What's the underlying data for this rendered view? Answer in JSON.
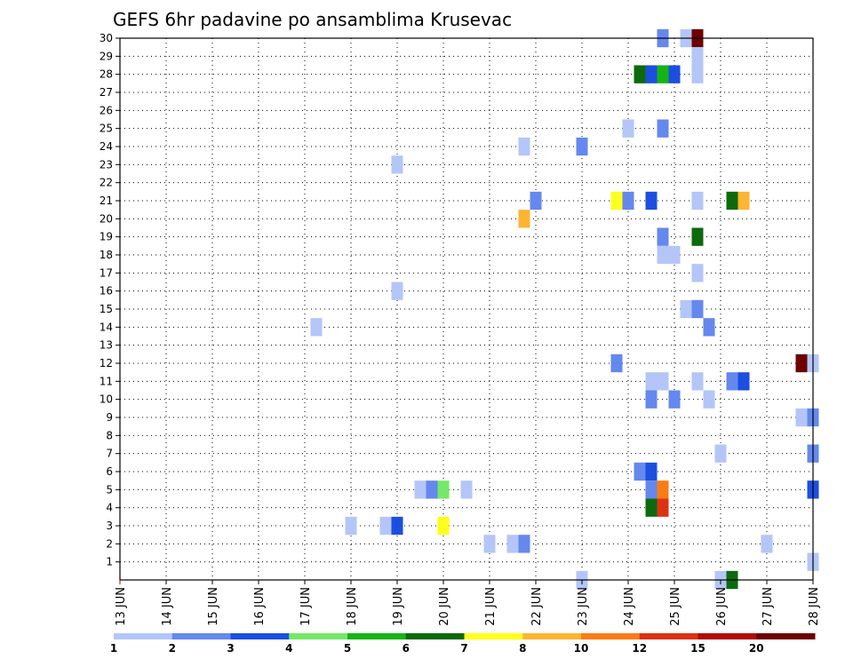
{
  "chart_data": {
    "type": "heatmap",
    "title": "GEFS 6hr padavine po ansamblima Krusevac",
    "x_labels": [
      "13 JUN",
      "14 JUN",
      "15 JUN",
      "16 JUN",
      "17 JUN",
      "18 JUN",
      "19 JUN",
      "20 JUN",
      "21 JUN",
      "22 JUN",
      "23 JUN",
      "24 JUN",
      "25 JUN",
      "26 JUN",
      "27 JUN",
      "28 JUN"
    ],
    "y_labels": [
      "1",
      "2",
      "3",
      "4",
      "5",
      "6",
      "7",
      "8",
      "9",
      "10",
      "11",
      "12",
      "13",
      "14",
      "15",
      "16",
      "17",
      "18",
      "19",
      "20",
      "21",
      "22",
      "23",
      "24",
      "25",
      "26",
      "27",
      "28",
      "29",
      "30"
    ],
    "ylim": [
      0,
      30
    ],
    "x_range_days": [
      0,
      15
    ],
    "grid": true,
    "legend": {
      "placement": "bottom",
      "levels": [
        "1",
        "2",
        "3",
        "4",
        "5",
        "6",
        "7",
        "8",
        "10",
        "12",
        "15",
        "20"
      ],
      "colors": [
        "#b4c6f8",
        "#6488ee",
        "#1c4ee0",
        "#74e868",
        "#14b414",
        "#0c6a0c",
        "#ffff1c",
        "#fcb432",
        "#fc7b14",
        "#dc3214",
        "#b40a0a",
        "#6e0000"
      ]
    },
    "cells": [
      {
        "t": 11.75,
        "m": 30,
        "c": 2
      },
      {
        "t": 12.25,
        "m": 30,
        "c": 1
      },
      {
        "t": 12.5,
        "m": 30,
        "c": 12
      },
      {
        "t": 12.5,
        "m": 29,
        "c": 1
      },
      {
        "t": 11.25,
        "m": 28,
        "c": 6
      },
      {
        "t": 11.5,
        "m": 28,
        "c": 3
      },
      {
        "t": 11.75,
        "m": 28,
        "c": 5
      },
      {
        "t": 12.0,
        "m": 28,
        "c": 3
      },
      {
        "t": 12.5,
        "m": 28,
        "c": 1
      },
      {
        "t": 11.0,
        "m": 25,
        "c": 1
      },
      {
        "t": 11.75,
        "m": 25,
        "c": 2
      },
      {
        "t": 8.75,
        "m": 24,
        "c": 1
      },
      {
        "t": 10.0,
        "m": 24,
        "c": 2
      },
      {
        "t": 6.0,
        "m": 23,
        "c": 1
      },
      {
        "t": 9.0,
        "m": 21,
        "c": 2
      },
      {
        "t": 10.75,
        "m": 21,
        "c": 7
      },
      {
        "t": 11.0,
        "m": 21,
        "c": 2
      },
      {
        "t": 11.5,
        "m": 21,
        "c": 3
      },
      {
        "t": 12.5,
        "m": 21,
        "c": 1
      },
      {
        "t": 13.25,
        "m": 21,
        "c": 6
      },
      {
        "t": 13.5,
        "m": 21,
        "c": 8
      },
      {
        "t": 8.75,
        "m": 20,
        "c": 8
      },
      {
        "t": 11.75,
        "m": 19,
        "c": 2
      },
      {
        "t": 12.5,
        "m": 19,
        "c": 6
      },
      {
        "t": 11.75,
        "m": 18,
        "c": 1
      },
      {
        "t": 12.0,
        "m": 18,
        "c": 1
      },
      {
        "t": 12.5,
        "m": 17,
        "c": 1
      },
      {
        "t": 6.0,
        "m": 16,
        "c": 1
      },
      {
        "t": 12.25,
        "m": 15,
        "c": 1
      },
      {
        "t": 12.5,
        "m": 15,
        "c": 2
      },
      {
        "t": 4.25,
        "m": 14,
        "c": 1
      },
      {
        "t": 12.75,
        "m": 14,
        "c": 2
      },
      {
        "t": 10.75,
        "m": 12,
        "c": 2
      },
      {
        "t": 14.75,
        "m": 12,
        "c": 12
      },
      {
        "t": 15.0,
        "m": 12,
        "c": 1
      },
      {
        "t": 11.5,
        "m": 11,
        "c": 1
      },
      {
        "t": 11.75,
        "m": 11,
        "c": 1
      },
      {
        "t": 12.5,
        "m": 11,
        "c": 1
      },
      {
        "t": 13.25,
        "m": 11,
        "c": 2
      },
      {
        "t": 13.5,
        "m": 11,
        "c": 3
      },
      {
        "t": 11.5,
        "m": 10,
        "c": 2
      },
      {
        "t": 12.0,
        "m": 10,
        "c": 2
      },
      {
        "t": 12.75,
        "m": 10,
        "c": 1
      },
      {
        "t": 14.75,
        "m": 9,
        "c": 1
      },
      {
        "t": 15.0,
        "m": 9,
        "c": 2
      },
      {
        "t": 13.0,
        "m": 7,
        "c": 1
      },
      {
        "t": 15.0,
        "m": 7,
        "c": 2
      },
      {
        "t": 11.25,
        "m": 6,
        "c": 2
      },
      {
        "t": 11.5,
        "m": 6,
        "c": 3
      },
      {
        "t": 6.5,
        "m": 5,
        "c": 1
      },
      {
        "t": 6.75,
        "m": 5,
        "c": 2
      },
      {
        "t": 7.0,
        "m": 5,
        "c": 4
      },
      {
        "t": 7.5,
        "m": 5,
        "c": 1
      },
      {
        "t": 11.5,
        "m": 5,
        "c": 2
      },
      {
        "t": 11.75,
        "m": 5,
        "c": 9
      },
      {
        "t": 15.0,
        "m": 5,
        "c": 3
      },
      {
        "t": 11.5,
        "m": 4,
        "c": 6
      },
      {
        "t": 11.75,
        "m": 4,
        "c": 10
      },
      {
        "t": 5.0,
        "m": 3,
        "c": 1
      },
      {
        "t": 5.75,
        "m": 3,
        "c": 1
      },
      {
        "t": 6.0,
        "m": 3,
        "c": 3
      },
      {
        "t": 7.0,
        "m": 3,
        "c": 7
      },
      {
        "t": 8.0,
        "m": 2,
        "c": 1
      },
      {
        "t": 8.5,
        "m": 2,
        "c": 1
      },
      {
        "t": 8.75,
        "m": 2,
        "c": 2
      },
      {
        "t": 14.0,
        "m": 2,
        "c": 1
      },
      {
        "t": 15.0,
        "m": 1,
        "c": 1
      },
      {
        "t": 10.0,
        "m": 0,
        "c": 1
      },
      {
        "t": 13.0,
        "m": 0,
        "c": 1
      },
      {
        "t": 13.25,
        "m": 0,
        "c": 6
      }
    ]
  }
}
